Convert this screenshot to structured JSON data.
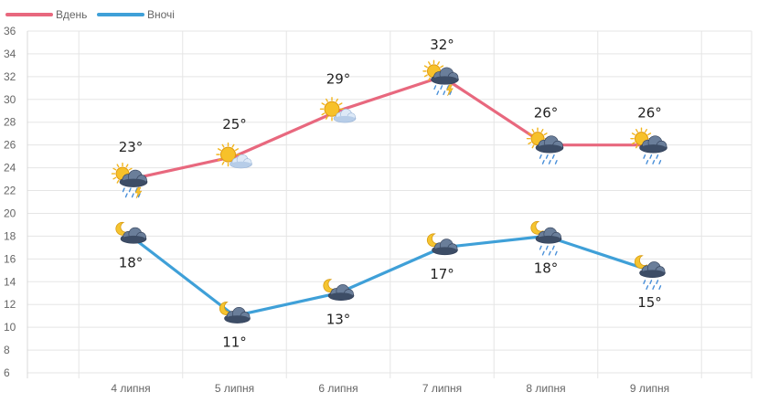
{
  "chart_data": {
    "type": "line",
    "categories": [
      "4 липня",
      "5 липня",
      "6 липня",
      "7 липня",
      "8 липня",
      "9 липня"
    ],
    "ylim": [
      6,
      36
    ],
    "yticks": [
      6,
      8,
      10,
      12,
      14,
      16,
      18,
      20,
      22,
      24,
      26,
      28,
      30,
      32,
      34,
      36
    ],
    "grid": true,
    "legend_position": "top-left",
    "series": [
      {
        "name": "Вдень",
        "color": "#e8687e",
        "values": [
          23,
          25,
          29,
          32,
          26,
          26
        ],
        "labels": [
          "23°",
          "25°",
          "29°",
          "32°",
          "26°",
          "26°"
        ],
        "label_position": "above",
        "icons": [
          "sun-cloud-storm-rain-icon",
          "sun-light-cloud-icon",
          "sun-light-cloud-icon",
          "sun-cloud-storm-rain-icon",
          "sun-cloud-rain-icon",
          "sun-cloud-rain-icon"
        ]
      },
      {
        "name": "Вночі",
        "color": "#3fa0d8",
        "values": [
          18,
          11,
          13,
          17,
          18,
          15
        ],
        "labels": [
          "18°",
          "11°",
          "13°",
          "17°",
          "18°",
          "15°"
        ],
        "label_position": "below",
        "icons": [
          "moon-cloud-icon",
          "moon-cloud-icon",
          "moon-cloud-icon",
          "moon-cloud-icon",
          "moon-cloud-rain-icon",
          "moon-cloud-rain-icon"
        ]
      }
    ]
  }
}
